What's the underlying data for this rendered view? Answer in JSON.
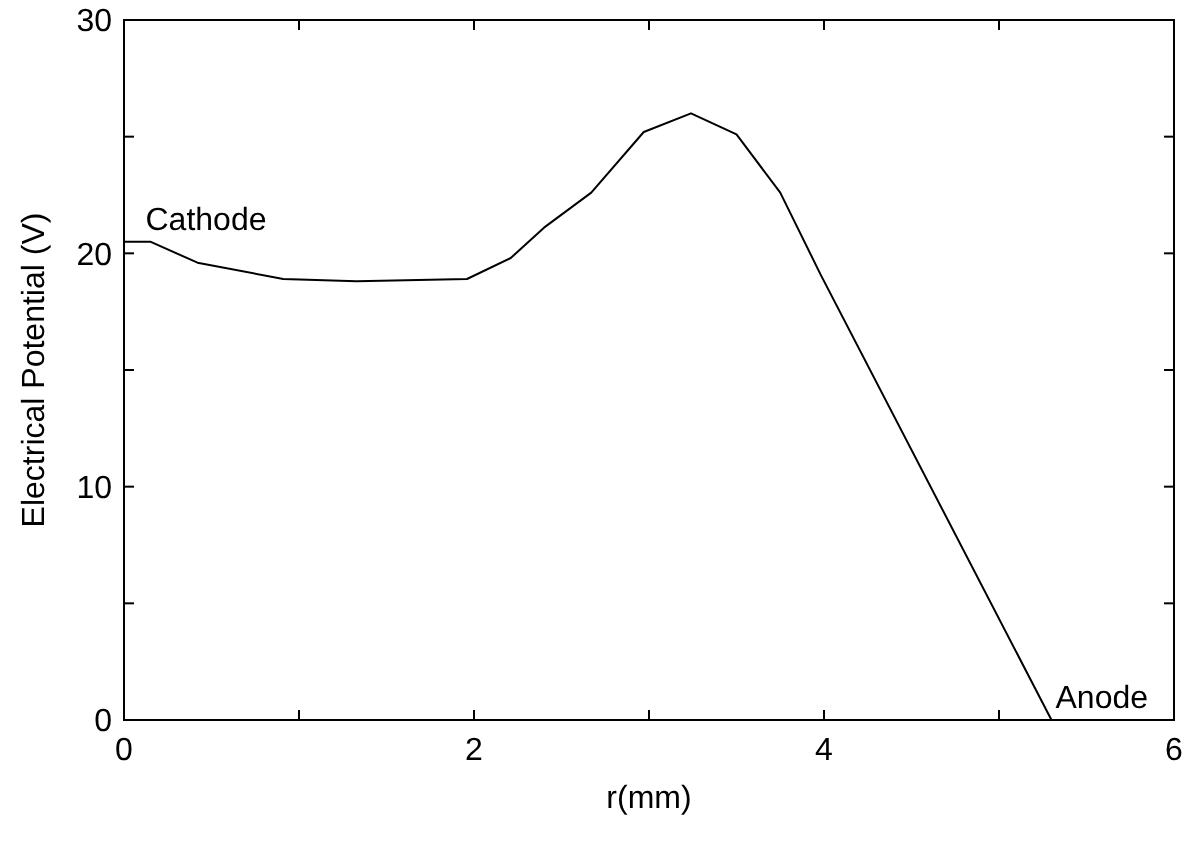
{
  "chart_data": {
    "type": "line",
    "xlabel": "r(mm)",
    "ylabel": "Electrical Potential (V)",
    "x": [
      0,
      0.15,
      0.42,
      0.91,
      1.33,
      1.96,
      2.21,
      2.4,
      2.67,
      2.97,
      3.24,
      3.5,
      3.75,
      3.98,
      5.3
    ],
    "values": [
      20.5,
      20.5,
      19.6,
      18.9,
      18.8,
      18.9,
      19.8,
      21.1,
      22.6,
      25.2,
      26,
      25.1,
      22.6,
      19.1,
      0
    ],
    "color": "#000000",
    "marker": "none",
    "line_style": "solid",
    "grid": false,
    "xlim": [
      0,
      6
    ],
    "ylim": [
      0,
      30
    ],
    "xticks": [
      0,
      {
        "value": 1,
        "label": null
      },
      2,
      {
        "value": 3,
        "label": null
      },
      4,
      {
        "value": 5,
        "label": null
      },
      6
    ],
    "yticks": [
      0,
      {
        "value": 5,
        "label": null
      },
      10,
      {
        "value": 15,
        "label": null
      },
      20,
      {
        "value": 25,
        "label": null
      },
      30
    ],
    "annotations": [
      {
        "text": "Cathode",
        "x": 0.1,
        "y": 20.5
      },
      {
        "text": "Anode",
        "x": 5.3,
        "y": 0
      }
    ]
  }
}
